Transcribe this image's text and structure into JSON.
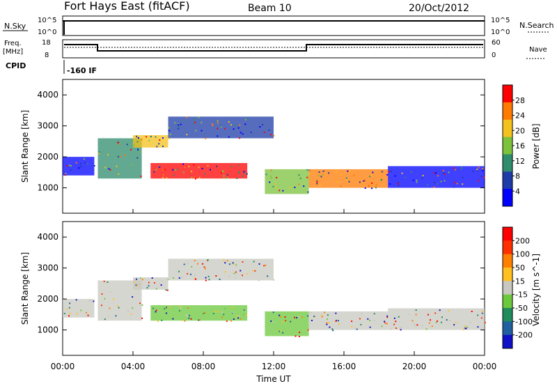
{
  "header": {
    "title": "Fort Hays East (fitACF)",
    "beam": "Beam 10",
    "date": "20/Oct/2012"
  },
  "top_panels": {
    "nsky_label": "N.Sky",
    "nsky_ticks": [
      "10^5",
      "10^0"
    ],
    "nsearch_label": "N.Search",
    "nsearch_ticks": [
      "10^5",
      "10^0"
    ],
    "freq_label_1": "Freq.",
    "freq_label_2": "[MHz]",
    "freq_ticks": [
      "18",
      "8"
    ],
    "nave_label": "Nave",
    "nave_ticks": [
      "60",
      "0"
    ],
    "cpid_label": "CPID",
    "cpid_value": "-160 IF"
  },
  "chart_data": [
    {
      "type": "heatmap",
      "title": "",
      "xlabel": "",
      "ylabel": "Slant Range [km]",
      "x_range_hours": [
        0,
        24
      ],
      "y_range_km": [
        180,
        4500
      ],
      "yticks": [
        "4000",
        "3000",
        "2000",
        "1000"
      ],
      "colorbar": {
        "label": "Power [dB]",
        "ticks": [
          "28",
          "24",
          "20",
          "16",
          "12",
          "8",
          "4"
        ],
        "colors": [
          "#0000ff",
          "#1e3ca8",
          "#2f8c6c",
          "#7cc23c",
          "#f4c21c",
          "#ff7a00",
          "#ff0000"
        ]
      },
      "echo_bands": [
        {
          "start_h": 0.0,
          "end_h": 1.8,
          "lo_km": 1400,
          "hi_km": 2000
        },
        {
          "start_h": 2.0,
          "end_h": 4.5,
          "lo_km": 1300,
          "hi_km": 2600
        },
        {
          "start_h": 4.0,
          "end_h": 6.0,
          "lo_km": 2300,
          "hi_km": 2700
        },
        {
          "start_h": 5.0,
          "end_h": 10.5,
          "lo_km": 1300,
          "hi_km": 1800
        },
        {
          "start_h": 6.0,
          "end_h": 12.0,
          "lo_km": 2600,
          "hi_km": 3300
        },
        {
          "start_h": 11.5,
          "end_h": 14.0,
          "lo_km": 800,
          "hi_km": 1600
        },
        {
          "start_h": 14.0,
          "end_h": 18.5,
          "lo_km": 1000,
          "hi_km": 1600
        },
        {
          "start_h": 18.5,
          "end_h": 24.0,
          "lo_km": 1000,
          "hi_km": 1700
        }
      ]
    },
    {
      "type": "heatmap",
      "title": "",
      "xlabel": "Time UT",
      "ylabel": "Slant Range [km]",
      "x_range_hours": [
        0,
        24
      ],
      "y_range_km": [
        180,
        4500
      ],
      "xticks": [
        "00:00",
        "04:00",
        "08:00",
        "12:00",
        "16:00",
        "20:00",
        "00:00"
      ],
      "yticks": [
        "4000",
        "3000",
        "2000",
        "1000"
      ],
      "colorbar": {
        "label": "Velocity [m s^-1]",
        "ticks": [
          "200",
          "100",
          "50",
          "15",
          "-15",
          "-50",
          "-100",
          "-200"
        ],
        "colors": [
          "#1010c8",
          "#2060a0",
          "#208c5c",
          "#6cc83c",
          "#c8c8c0",
          "#ffc020",
          "#ff8000",
          "#ff3000",
          "#ff0000"
        ]
      }
    }
  ]
}
